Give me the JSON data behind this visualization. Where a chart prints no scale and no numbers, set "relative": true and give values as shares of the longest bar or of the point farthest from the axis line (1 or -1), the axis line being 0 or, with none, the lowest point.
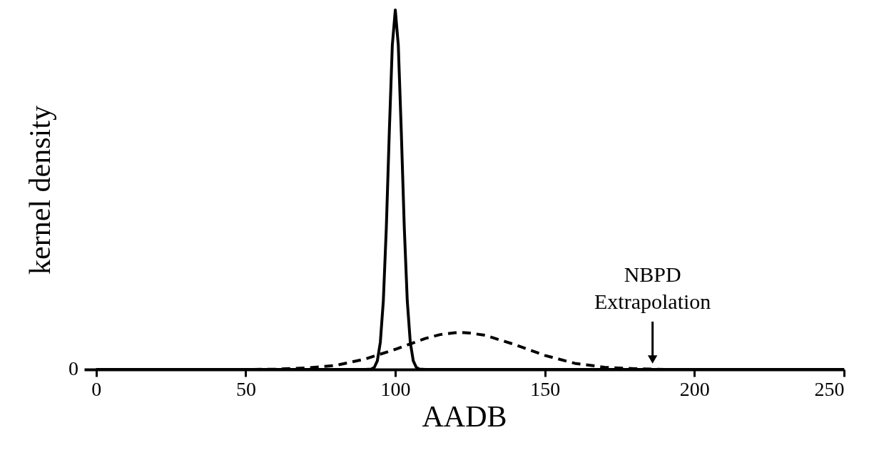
{
  "chart_data": {
    "type": "line",
    "relative": true,
    "xlabel": "AADB",
    "ylabel": "kernel density",
    "xlim": [
      -4,
      250
    ],
    "xticks": [
      0,
      50,
      100,
      150,
      200,
      250
    ],
    "grid": false,
    "marker": "none",
    "series": [
      {
        "color": "#000000",
        "line_style": "solid",
        "x": [
          0,
          80,
          90,
          92,
          93,
          94,
          95,
          96,
          97,
          98,
          99,
          100,
          101,
          102,
          103,
          104,
          105,
          106,
          107,
          108,
          110,
          120,
          250
        ],
        "values": [
          0,
          0,
          0,
          0.001,
          0.006,
          0.024,
          0.076,
          0.191,
          0.395,
          0.662,
          0.902,
          1,
          0.902,
          0.662,
          0.395,
          0.191,
          0.076,
          0.024,
          0.006,
          0.001,
          0,
          0,
          0
        ]
      },
      {
        "color": "#000000",
        "line_style": "dashed",
        "x": [
          0,
          50,
          60,
          70,
          80,
          90,
          100,
          110,
          115,
          120,
          122,
          125,
          130,
          140,
          150,
          160,
          170,
          180,
          190,
          200,
          250
        ],
        "values": [
          0,
          0,
          0.001,
          0.004,
          0.011,
          0.029,
          0.056,
          0.086,
          0.097,
          0.102,
          0.103,
          0.101,
          0.095,
          0.069,
          0.039,
          0.017,
          0.006,
          0.002,
          0,
          0,
          0
        ]
      }
    ],
    "annotations": [
      "0",
      {
        "text": "NBPD\nExtrapolation",
        "x": 186,
        "y": 0.01
      }
    ]
  }
}
